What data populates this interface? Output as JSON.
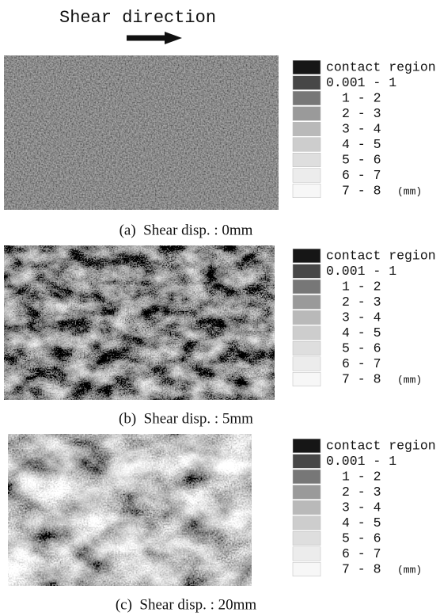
{
  "header": {
    "title": "Shear direction"
  },
  "panels": [
    {
      "caption": "(a)  Shear disp. : 0mm",
      "legend": {
        "items": [
          {
            "label": "contact region",
            "color": "#161616"
          },
          {
            "label": "0.001 - 1",
            "color": "#474747"
          },
          {
            "label": "1 - 2",
            "color": "#777777"
          },
          {
            "label": "2 - 3",
            "color": "#9a9a9a"
          },
          {
            "label": "3 - 4",
            "color": "#b9b9b9"
          },
          {
            "label": "4 - 5",
            "color": "#cdcdcd"
          },
          {
            "label": "5 - 6",
            "color": "#dedede"
          },
          {
            "label": "6 - 7",
            "color": "#ececec"
          },
          {
            "label": "7 - 8",
            "color": "#f7f7f7"
          }
        ],
        "unit": "(mm)"
      }
    },
    {
      "caption": "(b)  Shear disp. : 5mm",
      "legend": {
        "items": [
          {
            "label": "contact region",
            "color": "#161616"
          },
          {
            "label": "0.001 - 1",
            "color": "#474747"
          },
          {
            "label": "1 - 2",
            "color": "#777777"
          },
          {
            "label": "2 - 3",
            "color": "#9a9a9a"
          },
          {
            "label": "3 - 4",
            "color": "#b9b9b9"
          },
          {
            "label": "4 - 5",
            "color": "#cdcdcd"
          },
          {
            "label": "5 - 6",
            "color": "#dedede"
          },
          {
            "label": "6 - 7",
            "color": "#ececec"
          },
          {
            "label": "7 - 8",
            "color": "#f7f7f7"
          }
        ],
        "unit": "(mm)"
      }
    },
    {
      "caption": "(c)  Shear disp. : 20mm",
      "legend": {
        "items": [
          {
            "label": "contact region",
            "color": "#161616"
          },
          {
            "label": "0.001 - 1",
            "color": "#474747"
          },
          {
            "label": "1 - 2",
            "color": "#777777"
          },
          {
            "label": "2 - 3",
            "color": "#9a9a9a"
          },
          {
            "label": "3 - 4",
            "color": "#b9b9b9"
          },
          {
            "label": "4 - 5",
            "color": "#cdcdcd"
          },
          {
            "label": "5 - 6",
            "color": "#dedede"
          },
          {
            "label": "6 - 7",
            "color": "#ececec"
          },
          {
            "label": "7 - 8",
            "color": "#f7f7f7"
          }
        ],
        "unit": "(mm)"
      }
    }
  ]
}
